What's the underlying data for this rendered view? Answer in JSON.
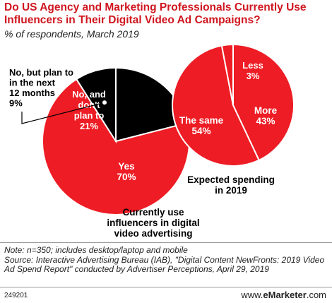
{
  "title": "Do US Agency and Marketing Professionals Currently Use Influencers in Their Digital Video Ad Campaigns?",
  "subtitle": "% of respondents, March 2019",
  "chart_data": [
    {
      "type": "pie",
      "caption": [
        "Currently use",
        "influencers in digital",
        "video advertising"
      ],
      "slices": [
        {
          "label": [
            "Yes"
          ],
          "value_label": "70%",
          "value": 70,
          "color": "#ee1c24",
          "text_color": "#ffffff"
        },
        {
          "label": [
            "No, but plan to",
            "in the next",
            "12 months"
          ],
          "value_label": "9%",
          "value": 9,
          "color": "#000000",
          "text_color": "#000000"
        },
        {
          "label": [
            "No, and",
            "don't",
            "plan to"
          ],
          "value_label": "21%",
          "value": 21,
          "color": "#000000",
          "text_color": "#ffffff"
        }
      ]
    },
    {
      "type": "pie",
      "caption": [
        "Expected spending",
        "in 2019"
      ],
      "slices": [
        {
          "label": [
            "More"
          ],
          "value_label": "43%",
          "value": 43,
          "color": "#ee1c24",
          "text_color": "#ffffff"
        },
        {
          "label": [
            "The same"
          ],
          "value_label": "54%",
          "value": 54,
          "color": "#ee1c24",
          "text_color": "#ffffff"
        },
        {
          "label": [
            "Less"
          ],
          "value_label": "3%",
          "value": 3,
          "color": "#ee1c24",
          "text_color": "#ffffff"
        }
      ]
    }
  ],
  "notes": [
    "Note: n=350; includes desktop/laptop and mobile",
    "Source: Interactive Advertising Bureau (IAB), \"Digital Content NewFronts: 2019 Video Ad Spend Report\" conducted by Advertiser Perceptions, April 29, 2019"
  ],
  "footer": {
    "code": "249201",
    "brand_prefix": "www.",
    "brand_name": "eMarketer",
    "brand_suffix": ".com"
  }
}
